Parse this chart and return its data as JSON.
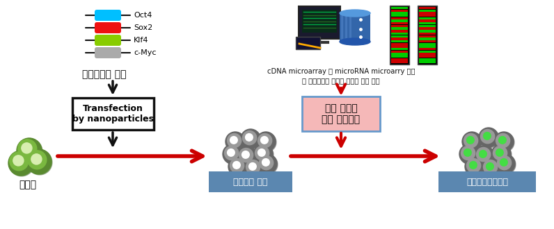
{
  "background_color": "#ffffff",
  "legend_items": [
    {
      "label": "Oct4",
      "color": "#00bfff"
    },
    {
      "label": "Sox2",
      "color": "#ee1111"
    },
    {
      "label": "Klf4",
      "color": "#88cc00"
    },
    {
      "label": "c-Myc",
      "color": "#aaaaaa"
    }
  ],
  "plasmid_label": "플라스미드 벡터",
  "transfection_box_text": "Transfection\nby nanoparticles",
  "body_cell_label": "체세포",
  "intermediate_label": "중간단계 세포",
  "stem_cell_label": "유도만능줄기세포",
  "cdna_label_line1": "cDNA microarray 및 microRNA microarry 수행",
  "cdna_label_line2": "및 생물정보학 기법을 이용한 분석 수행",
  "reprog_box_text": "완전 역분화\n유도 배양조건",
  "arrow_color": "#cc0000",
  "black_arrow_color": "#111111",
  "box_border_color": "#111111",
  "reprog_box_fill": "#f5b8b8",
  "reprog_box_border": "#6699cc",
  "intermediate_box_fill": "#5b87b0",
  "intermediate_box_text_color": "#ffffff",
  "stem_box_fill": "#5b87b0",
  "stem_box_text_color": "#ffffff",
  "green_cell_outer": "#5a8a30",
  "green_cell_mid": "#7ab840",
  "green_cell_inner": "#d8eeb0",
  "gray_cell_outer": "#666666",
  "gray_cell_mid": "#999999",
  "gray_cell_inner": "#ffffff",
  "gray_green_inner": "#44dd44",
  "gray_green_mid": "#228822"
}
